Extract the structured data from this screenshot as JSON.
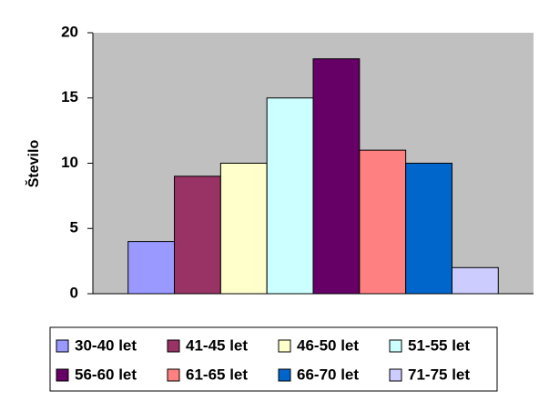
{
  "chart_data": {
    "type": "bar",
    "y_label": "Število",
    "categories": [
      null
    ],
    "series": [
      {
        "name": "30-40 let",
        "color": "#9999ff",
        "values": [
          4
        ]
      },
      {
        "name": "41-45 let",
        "color": "#993366",
        "values": [
          9
        ]
      },
      {
        "name": "46-50 let",
        "color": "#ffffcc",
        "values": [
          10
        ]
      },
      {
        "name": "51-55 let",
        "color": "#ccffff",
        "values": [
          15
        ]
      },
      {
        "name": "56-60 let",
        "color": "#660066",
        "values": [
          18
        ]
      },
      {
        "name": "61-65 let",
        "color": "#ff8080",
        "values": [
          11
        ]
      },
      {
        "name": "66-70 let",
        "color": "#0066cc",
        "values": [
          10
        ]
      },
      {
        "name": "71-75 let",
        "color": "#ccccff",
        "values": [
          2
        ]
      }
    ],
    "ylim": [
      0,
      20
    ],
    "yticks": [
      0,
      5,
      10,
      15,
      20
    ],
    "grid": false,
    "legend": "bottom"
  }
}
